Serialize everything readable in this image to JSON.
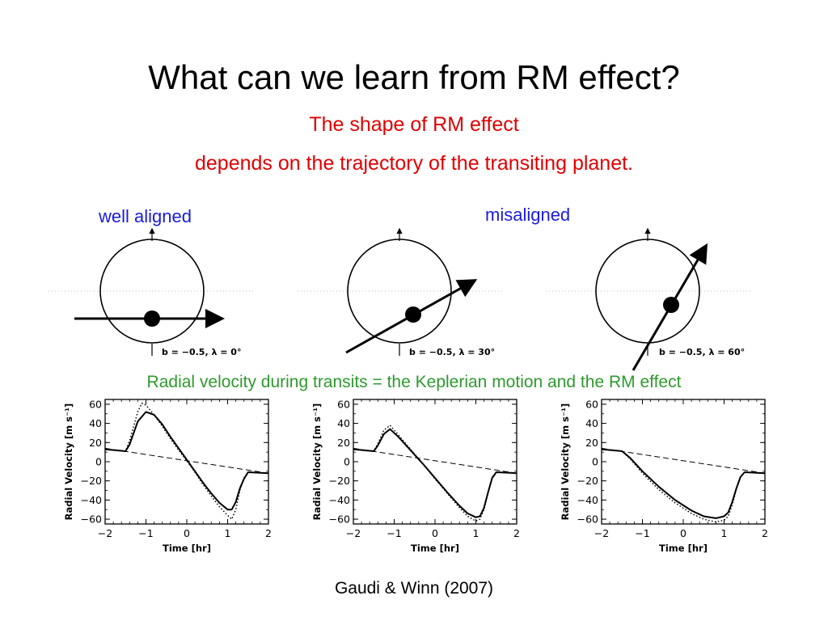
{
  "slide": {
    "title": "What can we learn from RM effect?",
    "subtitle_line1": "The shape of RM effect",
    "subtitle_line2": "depends on the trajectory of the transiting planet.",
    "label_aligned": "well aligned",
    "label_misaligned": "misaligned",
    "caption": "Radial velocity during transits = the Keplerian motion and the RM effect",
    "citation": "Gaudi & Winn (2007)"
  },
  "colors": {
    "title_text": "#000000",
    "subtitle_red": "#e00000",
    "label_blue": "#1a1ae0",
    "caption_green": "#2e9a2e"
  },
  "diagrams": [
    {
      "label": "b = −0.5, λ = 0°"
    },
    {
      "label": "b = −0.5, λ = 30°"
    },
    {
      "label": "b = −0.5, λ = 60°"
    }
  ],
  "chart_data": [
    {
      "type": "line",
      "xlabel": "Time [hr]",
      "ylabel": "Radial Velocity [m s⁻¹]",
      "xlim": [
        -2,
        2
      ],
      "ylim": [
        -65,
        65
      ],
      "xticks": [
        "−2",
        "−1",
        "0",
        "1",
        "2"
      ],
      "yticks": [
        "60",
        "40",
        "20",
        "0",
        "−20",
        "−40",
        "−60"
      ],
      "series": [
        {
          "style": "solid",
          "x": [
            -2,
            -1.5,
            -1.4,
            -1.2,
            -1.0,
            -0.8,
            -0.6,
            -0.4,
            -0.2,
            0,
            0.2,
            0.4,
            0.6,
            0.8,
            1.0,
            1.1,
            1.2,
            1.3,
            1.4,
            1.5,
            2
          ],
          "y": [
            13,
            11,
            18,
            42,
            52,
            49,
            39,
            26,
            14,
            2,
            -10,
            -22,
            -33,
            -43,
            -50,
            -50,
            -42,
            -28,
            -18,
            -11,
            -12
          ]
        },
        {
          "style": "dotted",
          "x": [
            -2,
            -1.5,
            -1.4,
            -1.2,
            -1.1,
            -1.0,
            -0.8,
            -0.6,
            -0.4,
            -0.2,
            0,
            0.2,
            0.4,
            0.6,
            0.8,
            1.0,
            1.1,
            1.2,
            1.3,
            1.4,
            1.5,
            2
          ],
          "y": [
            13,
            11,
            22,
            52,
            61,
            59,
            49,
            37,
            24,
            12,
            1,
            -11,
            -24,
            -36,
            -47,
            -56,
            -60,
            -50,
            -30,
            -17,
            -11,
            -12
          ]
        },
        {
          "style": "dashed",
          "x": [
            -2,
            2
          ],
          "y": [
            14,
            -12
          ]
        }
      ]
    },
    {
      "type": "line",
      "xlabel": "Time [hr]",
      "ylabel": "Radial Velocity [m s⁻¹]",
      "xlim": [
        -2,
        2
      ],
      "ylim": [
        -65,
        65
      ],
      "xticks": [
        "−2",
        "−1",
        "0",
        "1",
        "2"
      ],
      "yticks": [
        "60",
        "40",
        "20",
        "0",
        "−20",
        "−40",
        "−60"
      ],
      "series": [
        {
          "style": "solid",
          "x": [
            -2,
            -1.5,
            -1.4,
            -1.25,
            -1.1,
            -0.9,
            -0.6,
            -0.3,
            0,
            0.3,
            0.6,
            0.8,
            1.0,
            1.1,
            1.2,
            1.3,
            1.4,
            1.5,
            2
          ],
          "y": [
            13,
            11,
            17,
            29,
            34,
            26,
            12,
            -2,
            -17,
            -32,
            -46,
            -54,
            -58,
            -57,
            -48,
            -32,
            -17,
            -11,
            -12
          ]
        },
        {
          "style": "dotted",
          "x": [
            -2,
            -1.5,
            -1.4,
            -1.25,
            -1.1,
            -0.9,
            -0.6,
            -0.3,
            0,
            0.3,
            0.6,
            0.8,
            1.0,
            1.1,
            1.2,
            1.3,
            1.4,
            1.5,
            2
          ],
          "y": [
            13,
            11,
            19,
            33,
            38,
            28,
            13,
            -2,
            -18,
            -33,
            -48,
            -57,
            -62,
            -60,
            -50,
            -32,
            -16,
            -11,
            -12
          ]
        },
        {
          "style": "dashed",
          "x": [
            -2,
            2
          ],
          "y": [
            14,
            -12
          ]
        }
      ]
    },
    {
      "type": "line",
      "xlabel": "Time [hr]",
      "ylabel": "Radial Velocity [m s⁻¹]",
      "xlim": [
        -2,
        2
      ],
      "ylim": [
        -65,
        65
      ],
      "xticks": [
        "−2",
        "−1",
        "0",
        "1",
        "2"
      ],
      "yticks": [
        "60",
        "40",
        "20",
        "0",
        "−20",
        "−40",
        "−60"
      ],
      "series": [
        {
          "style": "solid",
          "x": [
            -2,
            -1.5,
            -1.3,
            -1.0,
            -0.6,
            -0.2,
            0.2,
            0.5,
            0.8,
            1.0,
            1.1,
            1.2,
            1.3,
            1.4,
            1.5,
            2
          ],
          "y": [
            13,
            11,
            4,
            -10,
            -26,
            -40,
            -51,
            -57,
            -59,
            -57,
            -53,
            -42,
            -28,
            -16,
            -11,
            -12
          ]
        },
        {
          "style": "dotted",
          "x": [
            -2,
            -1.5,
            -1.3,
            -1.0,
            -0.6,
            -0.2,
            0.2,
            0.5,
            0.8,
            1.0,
            1.1,
            1.2,
            1.3,
            1.4,
            1.5,
            2
          ],
          "y": [
            13,
            11,
            3,
            -12,
            -29,
            -43,
            -54,
            -60,
            -63,
            -61,
            -57,
            -45,
            -29,
            -16,
            -11,
            -12
          ]
        },
        {
          "style": "dashed",
          "x": [
            -2,
            2
          ],
          "y": [
            14,
            -12
          ]
        }
      ]
    }
  ]
}
